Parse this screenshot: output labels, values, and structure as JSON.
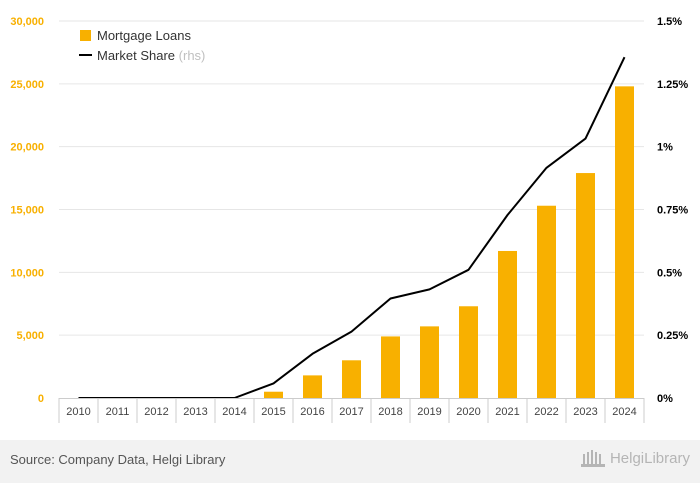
{
  "chart_data": {
    "type": "bar+line",
    "categories": [
      "2010",
      "2011",
      "2012",
      "2013",
      "2014",
      "2015",
      "2016",
      "2017",
      "2018",
      "2019",
      "2020",
      "2021",
      "2022",
      "2023",
      "2024"
    ],
    "series": [
      {
        "name": "Mortgage Loans",
        "type": "bar",
        "axis": "left",
        "color": "#f8b000",
        "values": [
          0,
          0,
          0,
          0,
          0,
          500,
          1800,
          3000,
          4900,
          5700,
          7300,
          11700,
          15300,
          17900,
          24800
        ]
      },
      {
        "name": "Market Share",
        "type": "line",
        "axis": "right",
        "color": "#000000",
        "values": [
          0,
          0,
          0,
          0,
          0,
          0.058,
          0.176,
          0.264,
          0.396,
          0.432,
          0.51,
          0.728,
          0.916,
          1.032,
          1.356
        ]
      }
    ],
    "y_left": {
      "min": 0,
      "max": 30000,
      "ticks": [
        "0",
        "5,000",
        "10,000",
        "15,000",
        "20,000",
        "25,000",
        "30,000"
      ],
      "color": "#f8b000"
    },
    "y_right": {
      "min": 0,
      "max": 1.5,
      "ticks": [
        "0%",
        "0.25%",
        "0.5%",
        "0.75%",
        "1%",
        "1.25%",
        "1.5%"
      ],
      "color": "#000000"
    },
    "legend": {
      "placement": "top-left",
      "rhs_tag": "(rhs)"
    },
    "grid": true
  },
  "footer": {
    "source": "Source: Company Data, Helgi Library",
    "logo_text": "HelgiLibrary"
  }
}
